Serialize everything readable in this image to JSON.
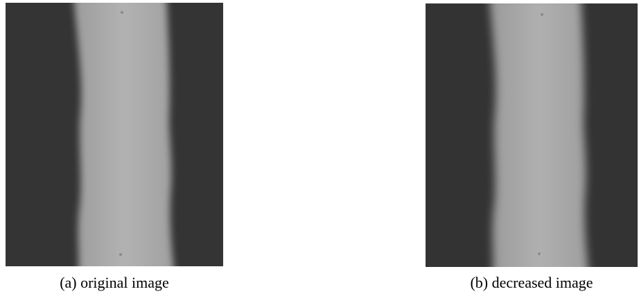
{
  "figure": {
    "panels": [
      {
        "caption": "(a) original image"
      },
      {
        "caption": "(b) decreased image"
      }
    ]
  }
}
